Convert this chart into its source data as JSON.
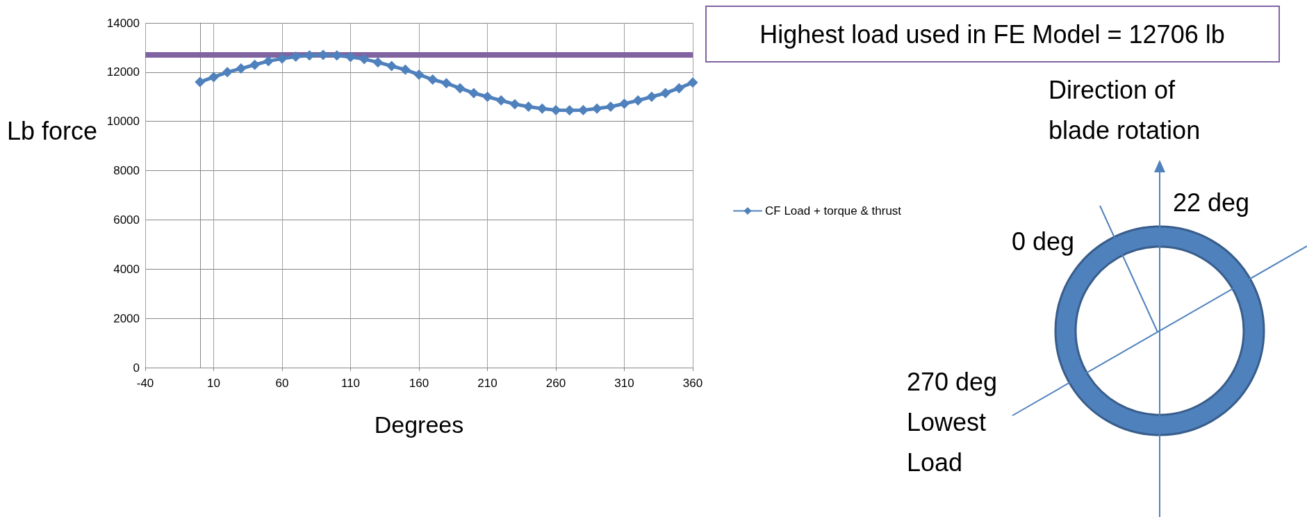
{
  "chart_data": {
    "type": "line",
    "xlabel": "Degrees",
    "ylabel": "Lb force",
    "x": [
      0,
      10,
      20,
      30,
      40,
      50,
      60,
      70,
      80,
      90,
      100,
      110,
      120,
      130,
      140,
      150,
      160,
      170,
      180,
      190,
      200,
      210,
      220,
      230,
      240,
      250,
      260,
      270,
      280,
      290,
      300,
      310,
      320,
      330,
      340,
      350,
      360
    ],
    "series": [
      {
        "name": "CF Load + torque & thrust",
        "color": "#4f81bd",
        "values": [
          11600,
          11800,
          12000,
          12150,
          12300,
          12450,
          12550,
          12630,
          12680,
          12700,
          12680,
          12620,
          12530,
          12400,
          12250,
          12100,
          11900,
          11700,
          11550,
          11350,
          11150,
          11000,
          10850,
          10700,
          10600,
          10520,
          10460,
          10450,
          10460,
          10520,
          10600,
          10720,
          10850,
          11000,
          11150,
          11350,
          11580
        ]
      }
    ],
    "xlim": [
      -40,
      360
    ],
    "xticks": [
      -40,
      10,
      60,
      110,
      160,
      210,
      260,
      310,
      360
    ],
    "ylim": [
      0,
      14000
    ],
    "yticks": [
      0,
      2000,
      4000,
      6000,
      8000,
      10000,
      12000,
      14000
    ],
    "grid": true,
    "legend": "right",
    "marker": "diamond",
    "line_style": "solid",
    "ref_lines": [
      {
        "axis": "y",
        "value": 12706,
        "label": "Highest load used in FE Model = 12706 lb",
        "color": "#8064a2"
      }
    ],
    "annotations": [
      "Direction of blade rotation",
      "22 deg",
      "0 deg",
      "270 deg Lowest Load"
    ]
  }
}
